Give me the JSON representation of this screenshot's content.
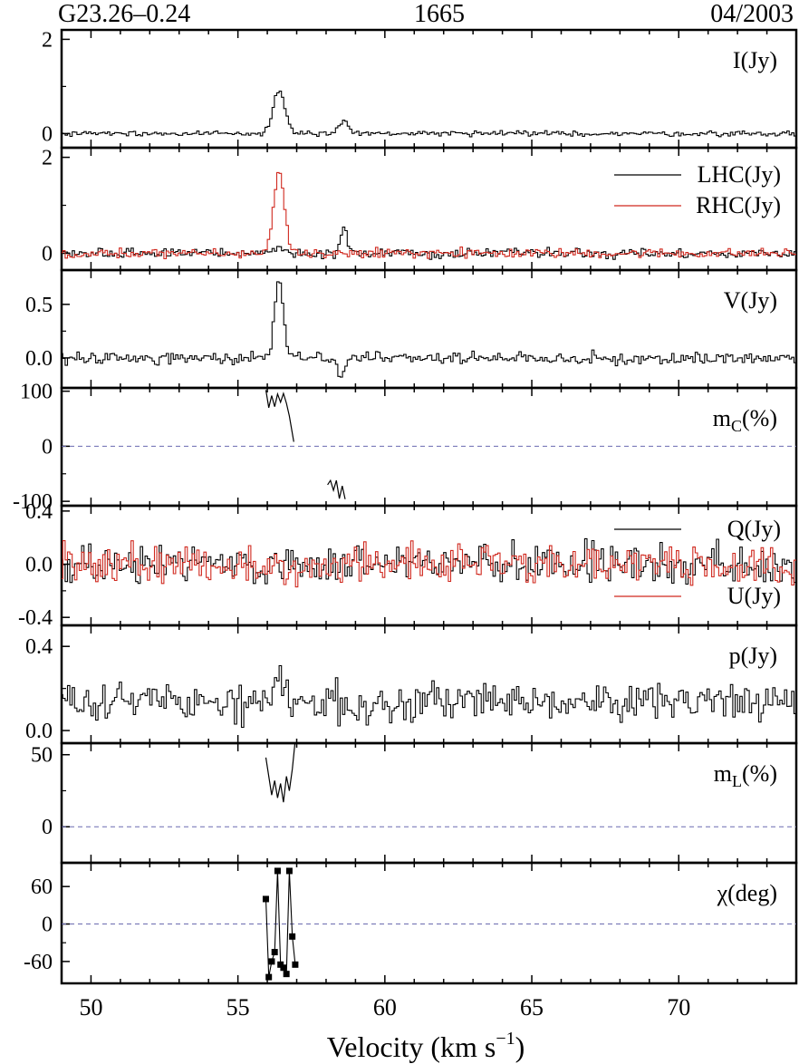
{
  "header": {
    "source": "G23.26–0.24",
    "frequency": "1665",
    "epoch": "04/2003"
  },
  "xaxis": {
    "label_main": "Velocity (km s",
    "label_sup": "−1",
    "label_close": ")",
    "ticks": [
      "50",
      "55",
      "60",
      "65",
      "70"
    ],
    "range": [
      49,
      74
    ]
  },
  "colors": {
    "black": "#000000",
    "red": "#d0281e",
    "dashed": "#6a6ab0"
  },
  "chart_data": [
    {
      "type": "line",
      "label": "I(Jy)",
      "ylim": [
        -0.3,
        2.2
      ],
      "yticks": [
        0,
        2
      ],
      "ytick_labels": [
        "0",
        "2"
      ],
      "series": [
        {
          "color": "black",
          "baseline": 0,
          "noise": 0.035,
          "seed": 3,
          "peaks": [
            {
              "v": 56.4,
              "amp": 0.92,
              "w": 0.28
            },
            {
              "v": 58.6,
              "amp": 0.28,
              "w": 0.22
            }
          ]
        }
      ]
    },
    {
      "type": "line",
      "label": "",
      "ylim": [
        -0.35,
        2.2
      ],
      "yticks": [
        0,
        2
      ],
      "ytick_labels": [
        "0",
        "2"
      ],
      "legend": [
        {
          "name": "LHC(Jy)",
          "color": "black"
        },
        {
          "name": "RHC(Jy)",
          "color": "red"
        }
      ],
      "series": [
        {
          "name": "LHC(Jy)",
          "color": "black",
          "baseline": 0,
          "noise": 0.06,
          "seed": 5,
          "peaks": [
            {
              "v": 56.4,
              "amp": 0.1,
              "w": 0.3
            },
            {
              "v": 58.6,
              "amp": 0.55,
              "w": 0.15
            }
          ]
        },
        {
          "name": "RHC(Jy)",
          "color": "red",
          "baseline": 0,
          "noise": 0.06,
          "seed": 9,
          "peaks": [
            {
              "v": 56.4,
              "amp": 1.72,
              "w": 0.26
            }
          ]
        }
      ]
    },
    {
      "type": "line",
      "label": "V(Jy)",
      "ylim": [
        -0.28,
        0.82
      ],
      "yticks": [
        0,
        0.5
      ],
      "ytick_labels": [
        "0.0",
        "0.5"
      ],
      "series": [
        {
          "color": "black",
          "baseline": 0,
          "noise": 0.035,
          "seed": 11,
          "peaks": [
            {
              "v": 56.4,
              "amp": 0.72,
              "w": 0.22
            },
            {
              "v": 58.5,
              "amp": -0.16,
              "w": 0.2
            }
          ]
        }
      ]
    },
    {
      "type": "line",
      "label_main": "m",
      "label_sub": "C",
      "label_tail": "(%)",
      "ylim": [
        -108,
        106
      ],
      "yticks": [
        -100,
        0,
        100
      ],
      "ytick_labels": [
        "-100",
        "0",
        "100"
      ],
      "zero_line": true,
      "segments": [
        {
          "x": [
            55.95,
            56.05,
            56.15,
            56.25,
            56.35,
            56.45,
            56.55,
            56.65,
            56.75,
            56.9
          ],
          "y": [
            102,
            70,
            92,
            72,
            95,
            80,
            96,
            78,
            55,
            8
          ]
        },
        {
          "x": [
            58.05,
            58.15,
            58.25,
            58.35,
            58.45,
            58.55,
            58.65
          ],
          "y": [
            -70,
            -62,
            -80,
            -62,
            -95,
            -72,
            -96
          ]
        }
      ]
    },
    {
      "type": "line",
      "label": "",
      "ylim": [
        -0.46,
        0.44
      ],
      "yticks": [
        -0.4,
        0,
        0.4
      ],
      "ytick_labels": [
        "-0.4",
        "0.0",
        "0.4"
      ],
      "legend": [
        {
          "name": "Q(Jy)",
          "color": "black"
        },
        {
          "name": "U(Jy)",
          "color": "red"
        }
      ],
      "series": [
        {
          "name": "Q(Jy)",
          "color": "black",
          "baseline": 0,
          "noise": 0.09,
          "seed": 21,
          "peaks": []
        },
        {
          "name": "U(Jy)",
          "color": "red",
          "baseline": 0,
          "noise": 0.09,
          "seed": 27,
          "peaks": []
        }
      ]
    },
    {
      "type": "line",
      "label": "p(Jy)",
      "ylim": [
        -0.06,
        0.5
      ],
      "yticks": [
        0,
        0.4
      ],
      "ytick_labels": [
        "0.0",
        "0.4"
      ],
      "series": [
        {
          "color": "black",
          "baseline": 0.13,
          "noise": 0.055,
          "seed": 33,
          "peaks": [
            {
              "v": 56.4,
              "amp": 0.1,
              "w": 0.25
            }
          ]
        }
      ]
    },
    {
      "type": "line",
      "label_main": "m",
      "label_sub": "L",
      "label_tail": "(%)",
      "ylim": [
        -25,
        58
      ],
      "yticks": [
        0,
        50
      ],
      "ytick_labels": [
        "0",
        "50"
      ],
      "zero_line": true,
      "segments": [
        {
          "x": [
            55.95,
            56.05,
            56.15,
            56.25,
            56.35,
            56.45,
            56.55,
            56.65,
            56.75,
            56.85,
            56.95
          ],
          "y": [
            48,
            35,
            22,
            32,
            20,
            30,
            17,
            35,
            25,
            40,
            60
          ]
        }
      ]
    },
    {
      "type": "scatter",
      "label": "χ(deg)",
      "ylim": [
        -95,
        98
      ],
      "yticks": [
        -60,
        0,
        60
      ],
      "ytick_labels": [
        "-60",
        "0",
        "60"
      ],
      "zero_line": true,
      "points": {
        "x": [
          55.95,
          56.05,
          56.15,
          56.25,
          56.35,
          56.45,
          56.55,
          56.65,
          56.75,
          56.85,
          56.95
        ],
        "y": [
          40,
          -85,
          -60,
          -45,
          85,
          -65,
          -70,
          -80,
          85,
          -20,
          -65
        ]
      }
    }
  ]
}
